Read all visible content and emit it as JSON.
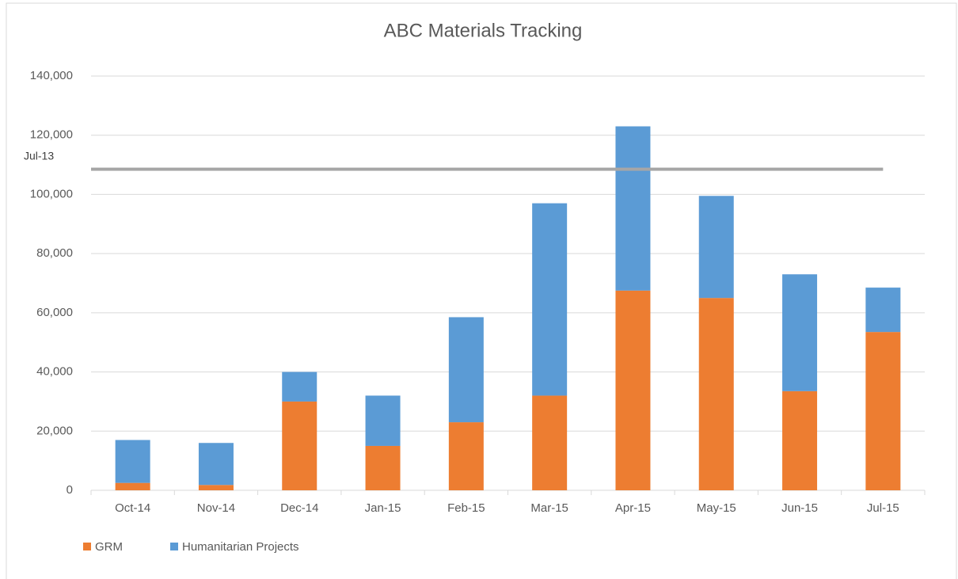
{
  "chart_data": {
    "type": "stacked_bar",
    "title": "ABC Materials Tracking",
    "categories": [
      "Oct-14",
      "Nov-14",
      "Dec-14",
      "Jan-15",
      "Feb-15",
      "Mar-15",
      "Apr-15",
      "May-15",
      "Jun-15",
      "Jul-15"
    ],
    "series": [
      {
        "name": "GRM",
        "color": "#ed7d31",
        "values": [
          2500,
          1800,
          30000,
          15000,
          23000,
          32000,
          67500,
          65000,
          33500,
          53500
        ]
      },
      {
        "name": "Humanitarian Projects",
        "color": "#5b9bd5",
        "values": [
          14500,
          14200,
          10000,
          17000,
          35500,
          65000,
          55500,
          34500,
          39500,
          15000
        ]
      }
    ],
    "ylim": [
      0,
      140000
    ],
    "yticks": [
      0,
      {
        "value": 20000,
        "label": "20,000"
      },
      {
        "value": 40000,
        "label": "40,000"
      },
      {
        "value": 60000,
        "label": "60,000"
      },
      {
        "value": 80000,
        "label": "80,000"
      },
      {
        "value": 100000,
        "label": "100,000"
      },
      {
        "value": 120000,
        "label": "120,000"
      },
      {
        "value": 140000,
        "label": "140,000"
      }
    ],
    "grid": true,
    "legend": "bottom-left",
    "reference_line": {
      "label": "Jul-13",
      "value": 108500,
      "color": "#a6a6a6"
    }
  }
}
